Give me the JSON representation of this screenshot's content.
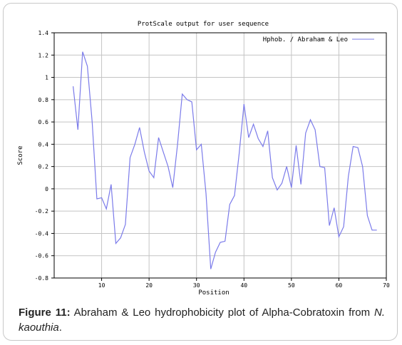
{
  "chart_data": {
    "type": "line",
    "title": "ProtScale output for user sequence",
    "xlabel": "Position",
    "ylabel": "Score",
    "xlim": [
      0,
      70
    ],
    "ylim": [
      -0.8,
      1.4
    ],
    "x_ticks": [
      "10",
      "20",
      "30",
      "40",
      "50",
      "60",
      "70"
    ],
    "y_ticks": [
      "1.4",
      "1.2",
      "1",
      "0.8",
      "0.6",
      "0.4",
      "0.2",
      "0",
      "-0.2",
      "-0.4",
      "-0.6",
      "-0.8"
    ],
    "grid": true,
    "legend_position": "top-right",
    "series": [
      {
        "name": "Hphob. / Abraham & Leo",
        "color": "#7b7bea",
        "x": [
          4,
          5,
          6,
          7,
          8,
          9,
          10,
          11,
          12,
          13,
          14,
          15,
          16,
          17,
          18,
          19,
          20,
          21,
          22,
          23,
          24,
          25,
          26,
          27,
          28,
          29,
          30,
          31,
          32,
          33,
          34,
          35,
          36,
          37,
          38,
          39,
          40,
          41,
          42,
          43,
          44,
          45,
          46,
          47,
          48,
          49,
          50,
          51,
          52,
          53,
          54,
          55,
          56,
          57,
          58,
          59,
          60,
          61,
          62,
          63,
          64,
          65,
          66,
          67,
          68
        ],
        "y": [
          0.92,
          0.53,
          1.23,
          1.1,
          0.6,
          -0.09,
          -0.08,
          -0.18,
          0.04,
          -0.49,
          -0.44,
          -0.32,
          0.28,
          0.4,
          0.55,
          0.33,
          0.16,
          0.1,
          0.46,
          0.33,
          0.2,
          0.01,
          0.4,
          0.85,
          0.8,
          0.78,
          0.35,
          0.4,
          -0.04,
          -0.72,
          -0.57,
          -0.48,
          -0.47,
          -0.14,
          -0.06,
          0.32,
          0.76,
          0.46,
          0.58,
          0.45,
          0.38,
          0.52,
          0.1,
          -0.01,
          0.05,
          0.2,
          0.01,
          0.39,
          0.04,
          0.5,
          0.62,
          0.53,
          0.2,
          0.19,
          -0.33,
          -0.17,
          -0.43,
          -0.34,
          0.11,
          0.38,
          0.37,
          0.2,
          -0.24,
          -0.37,
          -0.37
        ]
      }
    ]
  },
  "caption": {
    "label": "Figure 11:",
    "text_before": " Abraham & Leo hydrophobicity plot of Alpha-Cobratoxin from ",
    "species": "N. kaouthia",
    "text_after": "."
  }
}
